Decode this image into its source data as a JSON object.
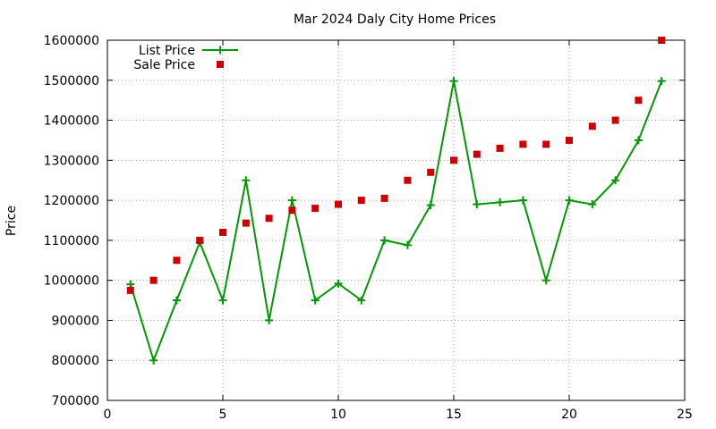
{
  "chart_data": {
    "type": "line",
    "title": "Mar 2024 Daly City Home Prices",
    "xlabel": "",
    "ylabel": "Price",
    "xlim": [
      0,
      25
    ],
    "ylim": [
      700000,
      1600000
    ],
    "xticks": [
      0,
      5,
      10,
      15,
      20,
      25
    ],
    "yticks": [
      700000,
      800000,
      900000,
      1000000,
      1100000,
      1200000,
      1300000,
      1400000,
      1500000,
      1600000
    ],
    "grid": true,
    "legend_position": "top-left",
    "series": [
      {
        "name": "List Price",
        "style": "line-points",
        "color": "#009900",
        "marker": "plus",
        "x": [
          1,
          2,
          3,
          4,
          5,
          6,
          7,
          8,
          9,
          10,
          11,
          12,
          13,
          14,
          15,
          16,
          17,
          18,
          19,
          20,
          21,
          22,
          23,
          24
        ],
        "y": [
          990000,
          800000,
          950000,
          1095000,
          950000,
          1250000,
          900000,
          1200000,
          950000,
          992000,
          950000,
          1100000,
          1088000,
          1188000,
          1498000,
          1190000,
          1195000,
          1200000,
          1000000,
          1200000,
          1190000,
          1250000,
          1350000,
          1498000
        ]
      },
      {
        "name": "Sale Price",
        "style": "points",
        "color": "#cc0000",
        "marker": "square",
        "x": [
          1,
          2,
          3,
          4,
          5,
          6,
          7,
          8,
          9,
          10,
          11,
          12,
          13,
          14,
          15,
          16,
          17,
          18,
          19,
          20,
          21,
          22,
          23,
          24
        ],
        "y": [
          975000,
          1000000,
          1050000,
          1100000,
          1120000,
          1143000,
          1155000,
          1175000,
          1180000,
          1190000,
          1200000,
          1205000,
          1250000,
          1270000,
          1300000,
          1315000,
          1330000,
          1340000,
          1340000,
          1350000,
          1385000,
          1400000,
          1450000,
          1600000
        ]
      }
    ]
  }
}
